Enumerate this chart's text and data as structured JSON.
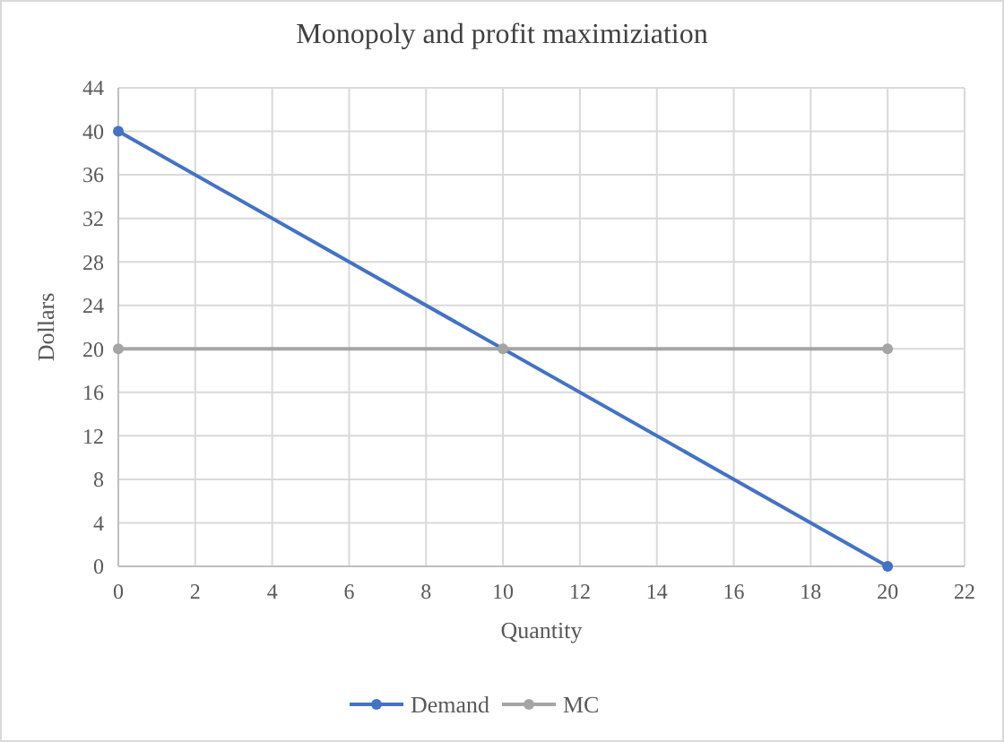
{
  "chart_data": {
    "type": "line",
    "title": "Monopoly  and profit maximiziation",
    "xlabel": "Quantity",
    "ylabel": "Dollars",
    "series": [
      {
        "name": "Demand",
        "color": "#4472c4",
        "x": [
          0,
          20
        ],
        "values": [
          40,
          0
        ]
      },
      {
        "name": "MC",
        "color": "#a5a5a5",
        "x": [
          0,
          10,
          20
        ],
        "values": [
          20,
          20,
          20
        ]
      }
    ],
    "xlim": [
      0,
      22
    ],
    "xticks": [
      0,
      2,
      4,
      6,
      8,
      10,
      12,
      14,
      16,
      18,
      20,
      22
    ],
    "ylim": [
      0,
      44
    ],
    "yticks": [
      0,
      4,
      8,
      12,
      16,
      20,
      24,
      28,
      32,
      36,
      40,
      44
    ],
    "grid": true,
    "legend": "bottom",
    "marker": "circle",
    "line_style": "solid"
  }
}
